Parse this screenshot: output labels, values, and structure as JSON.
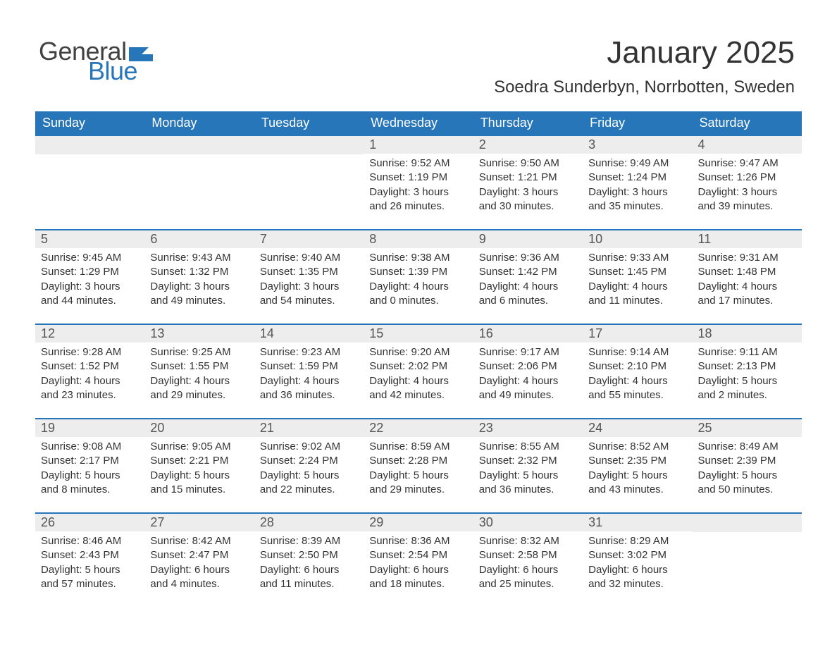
{
  "logo": {
    "text1": "General",
    "text2": "Blue",
    "flag_color": "#2776b9"
  },
  "header": {
    "month_title": "January 2025",
    "location": "Soedra Sunderbyn, Norrbotten, Sweden"
  },
  "colors": {
    "header_bg": "#2776b9",
    "header_text": "#ffffff",
    "daynum_bg": "#ededed",
    "border": "#2776b9",
    "body_text": "#333333"
  },
  "weekdays": [
    "Sunday",
    "Monday",
    "Tuesday",
    "Wednesday",
    "Thursday",
    "Friday",
    "Saturday"
  ],
  "weeks": [
    [
      null,
      null,
      null,
      {
        "n": "1",
        "sunrise": "Sunrise: 9:52 AM",
        "sunset": "Sunset: 1:19 PM",
        "dl1": "Daylight: 3 hours",
        "dl2": "and 26 minutes."
      },
      {
        "n": "2",
        "sunrise": "Sunrise: 9:50 AM",
        "sunset": "Sunset: 1:21 PM",
        "dl1": "Daylight: 3 hours",
        "dl2": "and 30 minutes."
      },
      {
        "n": "3",
        "sunrise": "Sunrise: 9:49 AM",
        "sunset": "Sunset: 1:24 PM",
        "dl1": "Daylight: 3 hours",
        "dl2": "and 35 minutes."
      },
      {
        "n": "4",
        "sunrise": "Sunrise: 9:47 AM",
        "sunset": "Sunset: 1:26 PM",
        "dl1": "Daylight: 3 hours",
        "dl2": "and 39 minutes."
      }
    ],
    [
      {
        "n": "5",
        "sunrise": "Sunrise: 9:45 AM",
        "sunset": "Sunset: 1:29 PM",
        "dl1": "Daylight: 3 hours",
        "dl2": "and 44 minutes."
      },
      {
        "n": "6",
        "sunrise": "Sunrise: 9:43 AM",
        "sunset": "Sunset: 1:32 PM",
        "dl1": "Daylight: 3 hours",
        "dl2": "and 49 minutes."
      },
      {
        "n": "7",
        "sunrise": "Sunrise: 9:40 AM",
        "sunset": "Sunset: 1:35 PM",
        "dl1": "Daylight: 3 hours",
        "dl2": "and 54 minutes."
      },
      {
        "n": "8",
        "sunrise": "Sunrise: 9:38 AM",
        "sunset": "Sunset: 1:39 PM",
        "dl1": "Daylight: 4 hours",
        "dl2": "and 0 minutes."
      },
      {
        "n": "9",
        "sunrise": "Sunrise: 9:36 AM",
        "sunset": "Sunset: 1:42 PM",
        "dl1": "Daylight: 4 hours",
        "dl2": "and 6 minutes."
      },
      {
        "n": "10",
        "sunrise": "Sunrise: 9:33 AM",
        "sunset": "Sunset: 1:45 PM",
        "dl1": "Daylight: 4 hours",
        "dl2": "and 11 minutes."
      },
      {
        "n": "11",
        "sunrise": "Sunrise: 9:31 AM",
        "sunset": "Sunset: 1:48 PM",
        "dl1": "Daylight: 4 hours",
        "dl2": "and 17 minutes."
      }
    ],
    [
      {
        "n": "12",
        "sunrise": "Sunrise: 9:28 AM",
        "sunset": "Sunset: 1:52 PM",
        "dl1": "Daylight: 4 hours",
        "dl2": "and 23 minutes."
      },
      {
        "n": "13",
        "sunrise": "Sunrise: 9:25 AM",
        "sunset": "Sunset: 1:55 PM",
        "dl1": "Daylight: 4 hours",
        "dl2": "and 29 minutes."
      },
      {
        "n": "14",
        "sunrise": "Sunrise: 9:23 AM",
        "sunset": "Sunset: 1:59 PM",
        "dl1": "Daylight: 4 hours",
        "dl2": "and 36 minutes."
      },
      {
        "n": "15",
        "sunrise": "Sunrise: 9:20 AM",
        "sunset": "Sunset: 2:02 PM",
        "dl1": "Daylight: 4 hours",
        "dl2": "and 42 minutes."
      },
      {
        "n": "16",
        "sunrise": "Sunrise: 9:17 AM",
        "sunset": "Sunset: 2:06 PM",
        "dl1": "Daylight: 4 hours",
        "dl2": "and 49 minutes."
      },
      {
        "n": "17",
        "sunrise": "Sunrise: 9:14 AM",
        "sunset": "Sunset: 2:10 PM",
        "dl1": "Daylight: 4 hours",
        "dl2": "and 55 minutes."
      },
      {
        "n": "18",
        "sunrise": "Sunrise: 9:11 AM",
        "sunset": "Sunset: 2:13 PM",
        "dl1": "Daylight: 5 hours",
        "dl2": "and 2 minutes."
      }
    ],
    [
      {
        "n": "19",
        "sunrise": "Sunrise: 9:08 AM",
        "sunset": "Sunset: 2:17 PM",
        "dl1": "Daylight: 5 hours",
        "dl2": "and 8 minutes."
      },
      {
        "n": "20",
        "sunrise": "Sunrise: 9:05 AM",
        "sunset": "Sunset: 2:21 PM",
        "dl1": "Daylight: 5 hours",
        "dl2": "and 15 minutes."
      },
      {
        "n": "21",
        "sunrise": "Sunrise: 9:02 AM",
        "sunset": "Sunset: 2:24 PM",
        "dl1": "Daylight: 5 hours",
        "dl2": "and 22 minutes."
      },
      {
        "n": "22",
        "sunrise": "Sunrise: 8:59 AM",
        "sunset": "Sunset: 2:28 PM",
        "dl1": "Daylight: 5 hours",
        "dl2": "and 29 minutes."
      },
      {
        "n": "23",
        "sunrise": "Sunrise: 8:55 AM",
        "sunset": "Sunset: 2:32 PM",
        "dl1": "Daylight: 5 hours",
        "dl2": "and 36 minutes."
      },
      {
        "n": "24",
        "sunrise": "Sunrise: 8:52 AM",
        "sunset": "Sunset: 2:35 PM",
        "dl1": "Daylight: 5 hours",
        "dl2": "and 43 minutes."
      },
      {
        "n": "25",
        "sunrise": "Sunrise: 8:49 AM",
        "sunset": "Sunset: 2:39 PM",
        "dl1": "Daylight: 5 hours",
        "dl2": "and 50 minutes."
      }
    ],
    [
      {
        "n": "26",
        "sunrise": "Sunrise: 8:46 AM",
        "sunset": "Sunset: 2:43 PM",
        "dl1": "Daylight: 5 hours",
        "dl2": "and 57 minutes."
      },
      {
        "n": "27",
        "sunrise": "Sunrise: 8:42 AM",
        "sunset": "Sunset: 2:47 PM",
        "dl1": "Daylight: 6 hours",
        "dl2": "and 4 minutes."
      },
      {
        "n": "28",
        "sunrise": "Sunrise: 8:39 AM",
        "sunset": "Sunset: 2:50 PM",
        "dl1": "Daylight: 6 hours",
        "dl2": "and 11 minutes."
      },
      {
        "n": "29",
        "sunrise": "Sunrise: 8:36 AM",
        "sunset": "Sunset: 2:54 PM",
        "dl1": "Daylight: 6 hours",
        "dl2": "and 18 minutes."
      },
      {
        "n": "30",
        "sunrise": "Sunrise: 8:32 AM",
        "sunset": "Sunset: 2:58 PM",
        "dl1": "Daylight: 6 hours",
        "dl2": "and 25 minutes."
      },
      {
        "n": "31",
        "sunrise": "Sunrise: 8:29 AM",
        "sunset": "Sunset: 3:02 PM",
        "dl1": "Daylight: 6 hours",
        "dl2": "and 32 minutes."
      },
      null
    ]
  ]
}
